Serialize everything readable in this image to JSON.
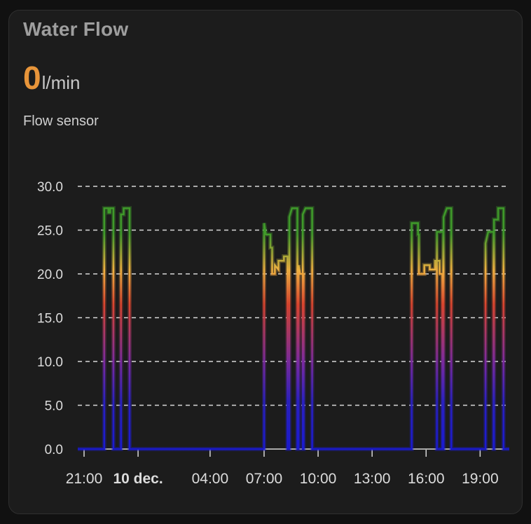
{
  "card": {
    "title": "Water Flow",
    "state_value": "0",
    "state_unit": "l/min",
    "subtitle": "Flow sensor"
  },
  "colors": {
    "accent": "#e8953a",
    "gradient": [
      "#1a1ad0",
      "#7a2aa0",
      "#d9442e",
      "#f0b040",
      "#3f9a2a"
    ]
  },
  "chart_data": {
    "type": "line",
    "title": "Water Flow",
    "xlabel": "",
    "ylabel": "l/min",
    "ylim": [
      0,
      30
    ],
    "grid": true,
    "y_ticks": [
      "0.0",
      "5.0",
      "10.0",
      "15.0",
      "20.0",
      "25.0",
      "30.0"
    ],
    "x_ticks": [
      {
        "label": "21:00",
        "hour": 0,
        "bold": false
      },
      {
        "label": "10 dec.",
        "hour": 3,
        "bold": true
      },
      {
        "label": "04:00",
        "hour": 7,
        "bold": false
      },
      {
        "label": "07:00",
        "hour": 10,
        "bold": false
      },
      {
        "label": "10:00",
        "hour": 13,
        "bold": false
      },
      {
        "label": "13:00",
        "hour": 16,
        "bold": false
      },
      {
        "label": "16:00",
        "hour": 19,
        "bold": false
      },
      {
        "label": "19:00",
        "hour": 22,
        "bold": false
      }
    ],
    "x_range_hours": [
      -0.35,
      23.62
    ],
    "x_unit": "hours since 21:00 (9 dec.)",
    "series": [
      {
        "name": "Flow sensor",
        "step": true,
        "points": [
          [
            -0.35,
            0
          ],
          [
            1.12,
            0
          ],
          [
            1.12,
            27.5
          ],
          [
            1.35,
            27.5
          ],
          [
            1.35,
            27.0
          ],
          [
            1.45,
            27.0
          ],
          [
            1.45,
            27.5
          ],
          [
            1.63,
            27.5
          ],
          [
            1.63,
            0
          ],
          [
            2.05,
            0
          ],
          [
            2.05,
            26.8
          ],
          [
            2.2,
            26.8
          ],
          [
            2.2,
            27.5
          ],
          [
            2.53,
            27.5
          ],
          [
            2.53,
            0
          ],
          [
            10.0,
            0
          ],
          [
            10.0,
            25.8
          ],
          [
            10.1,
            24.5
          ],
          [
            10.35,
            24.5
          ],
          [
            10.35,
            23.0
          ],
          [
            10.45,
            23.0
          ],
          [
            10.45,
            20.0
          ],
          [
            10.6,
            20.0
          ],
          [
            10.6,
            21.0
          ],
          [
            10.8,
            20.5
          ],
          [
            10.8,
            21.5
          ],
          [
            11.1,
            21.5
          ],
          [
            11.1,
            22.0
          ],
          [
            11.3,
            22.0
          ],
          [
            11.3,
            0
          ],
          [
            11.4,
            0
          ],
          [
            11.4,
            26.5
          ],
          [
            11.55,
            27.5
          ],
          [
            11.85,
            27.5
          ],
          [
            11.85,
            0
          ],
          [
            11.92,
            0
          ],
          [
            11.92,
            21.0
          ],
          [
            12.0,
            20.0
          ],
          [
            12.2,
            20.0
          ],
          [
            12.2,
            0
          ],
          [
            12.15,
            0
          ],
          [
            12.15,
            26.8
          ],
          [
            12.3,
            27.5
          ],
          [
            12.67,
            27.5
          ],
          [
            12.67,
            0
          ],
          [
            18.2,
            0
          ],
          [
            18.2,
            25.8
          ],
          [
            18.55,
            25.8
          ],
          [
            18.55,
            24.5
          ],
          [
            18.6,
            24.5
          ],
          [
            18.6,
            20.0
          ],
          [
            18.9,
            20.0
          ],
          [
            18.9,
            21.0
          ],
          [
            19.2,
            21.0
          ],
          [
            19.2,
            20.5
          ],
          [
            19.5,
            20.5
          ],
          [
            19.5,
            21.5
          ],
          [
            19.75,
            21.5
          ],
          [
            19.75,
            20.0
          ],
          [
            19.9,
            20.0
          ],
          [
            19.9,
            0
          ],
          [
            19.6,
            0
          ],
          [
            19.6,
            24.8
          ],
          [
            19.95,
            24.8
          ],
          [
            19.95,
            0
          ],
          [
            19.97,
            0
          ],
          [
            19.97,
            26.5
          ],
          [
            20.15,
            27.5
          ],
          [
            20.4,
            27.5
          ],
          [
            20.4,
            0
          ],
          [
            22.3,
            0
          ],
          [
            22.3,
            23.5
          ],
          [
            22.45,
            24.8
          ],
          [
            22.75,
            24.8
          ],
          [
            22.75,
            0
          ],
          [
            22.77,
            0
          ],
          [
            22.77,
            26.2
          ],
          [
            23.0,
            26.2
          ],
          [
            23.0,
            27.5
          ],
          [
            23.3,
            27.5
          ],
          [
            23.3,
            0
          ],
          [
            23.62,
            0
          ]
        ]
      }
    ]
  }
}
